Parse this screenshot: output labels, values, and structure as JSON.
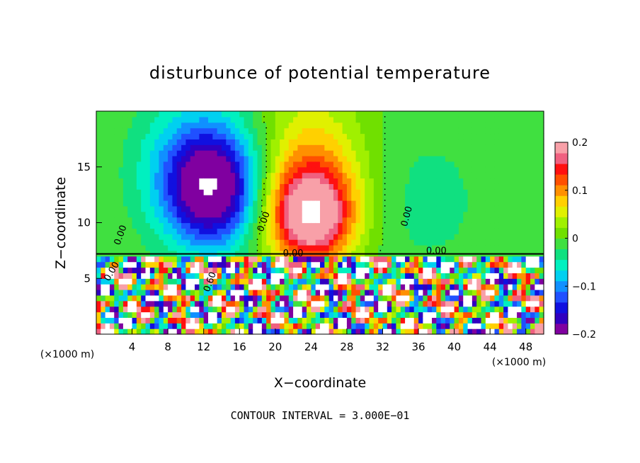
{
  "chart_data": {
    "type": "heatmap",
    "title": "disturbunce of potential temperature",
    "xlabel": "X−coordinate",
    "ylabel": "Z−coordinate",
    "x_unit": "(×1000 m)",
    "y_unit": "(×1000 m)",
    "xlim": [
      0,
      50
    ],
    "ylim": [
      0,
      20
    ],
    "x_ticks": [
      4,
      8,
      12,
      16,
      20,
      24,
      28,
      32,
      36,
      40,
      44,
      48
    ],
    "y_ticks": [
      5,
      10,
      15
    ],
    "x_tick_labels": [
      "4",
      "8",
      "12",
      "16",
      "20",
      "24",
      "28",
      "32",
      "36",
      "40",
      "44",
      "48"
    ],
    "y_tick_labels": [
      "5",
      "10",
      "15"
    ],
    "colorbar": {
      "range": [
        -0.2,
        0.2
      ],
      "tick_values": [
        -0.2,
        -0.1,
        0,
        0.1,
        0.2
      ],
      "tick_labels": [
        "−0.2",
        "−0.1",
        "0",
        "0.1",
        "0.2"
      ],
      "colors": [
        "#8000a0",
        "#3000c0",
        "#1010e0",
        "#2050ff",
        "#1090ff",
        "#00d0f0",
        "#00f0c0",
        "#10e080",
        "#40e040",
        "#70e000",
        "#a0f000",
        "#e0f000",
        "#ffd000",
        "#ff9000",
        "#ff5000",
        "#ff1010",
        "#f06080",
        "#f8a0a8"
      ]
    },
    "contour_interval_text": "CONTOUR INTERVAL = 3.000E−01",
    "contour_labels": [
      "0.00",
      "0.00",
      "0.00",
      "0.00",
      "0.00",
      "0.00",
      "0.60"
    ],
    "features": [
      {
        "x": 13,
        "z": 13,
        "value": -0.18,
        "sx": 5,
        "sz": 5
      },
      {
        "x": 11,
        "z": 15,
        "value": -0.08,
        "sx": 7,
        "sz": 7
      },
      {
        "x": 24,
        "z": 10.5,
        "value": 0.18,
        "sx": 4.5,
        "sz": 4
      },
      {
        "x": 24,
        "z": 14,
        "value": 0.1,
        "sx": 6,
        "sz": 7
      },
      {
        "x": 37,
        "z": 12,
        "value": -0.03,
        "sx": 8,
        "sz": 8
      }
    ]
  }
}
